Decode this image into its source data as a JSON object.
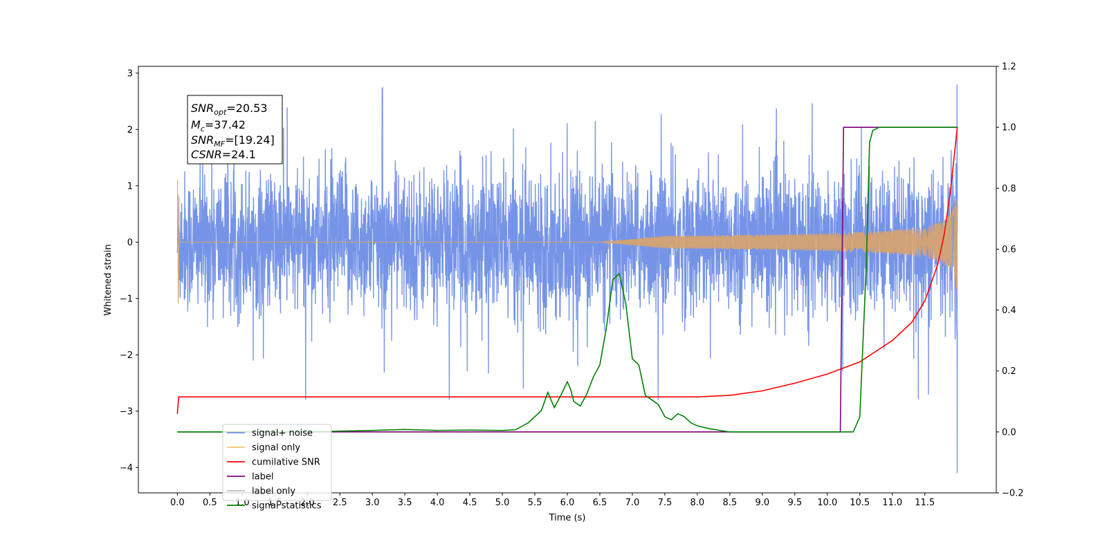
{
  "chart_data": {
    "type": "line",
    "xlabel": "Time (s)",
    "ylabel": "Whitened strain",
    "xlim": [
      -0.6,
      12.6
    ],
    "ylim": [
      -4.45,
      3.12
    ],
    "y2lim": [
      -0.2,
      1.2
    ],
    "x_ticks": [
      "0.0",
      "0.5",
      "1.0",
      "1.5",
      "2.0",
      "2.5",
      "3.0",
      "3.5",
      "4.0",
      "4.5",
      "5.0",
      "5.5",
      "6.0",
      "6.5",
      "7.0",
      "7.5",
      "8.0",
      "8.5",
      "9.0",
      "9.5",
      "10.0",
      "10.5",
      "11.0",
      "11.5"
    ],
    "y_ticks": [
      "3",
      "2",
      "1",
      "0",
      "−1",
      "−2",
      "−3",
      "−4"
    ],
    "y2_ticks": [
      "1.2",
      "1.0",
      "0.8",
      "0.6",
      "0.4",
      "0.2",
      "0.0",
      "−0.2"
    ],
    "annotation": {
      "snr_opt": {
        "name": "SNR",
        "sub": "opt",
        "value": "=20.53"
      },
      "mc": {
        "name": "M",
        "sub": "c",
        "value": "=37.42"
      },
      "snr_mf": {
        "name": "SNR",
        "sub": "MF",
        "value": "=[19.24]"
      },
      "csnr": {
        "name": "CSNR",
        "sub": "",
        "value": "=24.1"
      }
    },
    "legend": {
      "position": "lower-left",
      "entries": [
        {
          "label": "signal+ noise",
          "color": "#6f8ee6"
        },
        {
          "label": "signal only",
          "color": "#f6c36d"
        },
        {
          "label": "cumilative SNR",
          "color": "#ff0000"
        },
        {
          "label": "label",
          "color": "#800080"
        },
        {
          "label": "label only",
          "color": "#bbbbbb"
        },
        {
          "label": "signal statistics",
          "color": "#008000"
        }
      ]
    },
    "series": [
      {
        "name": "signal+ noise",
        "axis": "left",
        "color": "#6f8ee6",
        "description_kind": "noise",
        "x_range": [
          0,
          12.0
        ],
        "amplitude_typical": 1.3,
        "amplitude_peak": 2.7
      },
      {
        "name": "signal only",
        "axis": "left",
        "color": "#d9a36a",
        "description_kind": "chirp",
        "x_range": [
          0,
          12.0
        ],
        "amplitude_end": 1.1
      },
      {
        "name": "cumilative SNR",
        "axis": "right",
        "x": [
          0.0,
          0.02,
          8.0,
          8.5,
          9.0,
          9.5,
          10.0,
          10.5,
          11.0,
          11.3,
          11.5,
          11.7,
          11.8,
          11.9,
          11.95,
          12.0
        ],
        "y": [
          0.06,
          0.115,
          0.115,
          0.12,
          0.135,
          0.16,
          0.19,
          0.23,
          0.3,
          0.36,
          0.43,
          0.55,
          0.65,
          0.8,
          0.9,
          1.0
        ]
      },
      {
        "name": "label",
        "axis": "right",
        "x": [
          0.0,
          10.2,
          10.25,
          12.0
        ],
        "y": [
          0.0,
          0.0,
          1.0,
          1.0
        ]
      },
      {
        "name": "signal statistics",
        "axis": "right",
        "x": [
          0.0,
          2.0,
          3.0,
          3.5,
          4.0,
          4.5,
          5.0,
          5.2,
          5.4,
          5.6,
          5.7,
          5.8,
          5.9,
          6.0,
          6.05,
          6.1,
          6.2,
          6.3,
          6.4,
          6.5,
          6.6,
          6.7,
          6.8,
          6.9,
          7.0,
          7.1,
          7.2,
          7.3,
          7.4,
          7.5,
          7.6,
          7.7,
          7.8,
          7.9,
          8.0,
          8.2,
          8.5,
          9.0,
          10.0,
          10.4,
          10.5,
          10.55,
          10.6,
          10.65,
          10.7,
          10.8,
          10.9,
          12.0
        ],
        "y": [
          0.0,
          0.0,
          0.005,
          0.008,
          0.005,
          0.006,
          0.005,
          0.007,
          0.03,
          0.07,
          0.13,
          0.08,
          0.12,
          0.165,
          0.14,
          0.1,
          0.085,
          0.125,
          0.18,
          0.22,
          0.34,
          0.5,
          0.52,
          0.42,
          0.24,
          0.22,
          0.12,
          0.105,
          0.09,
          0.05,
          0.04,
          0.06,
          0.05,
          0.03,
          0.02,
          0.01,
          0.0,
          0.0,
          0.0,
          0.0,
          0.05,
          0.3,
          0.55,
          0.95,
          0.99,
          1.0,
          1.0,
          1.0
        ]
      }
    ]
  }
}
